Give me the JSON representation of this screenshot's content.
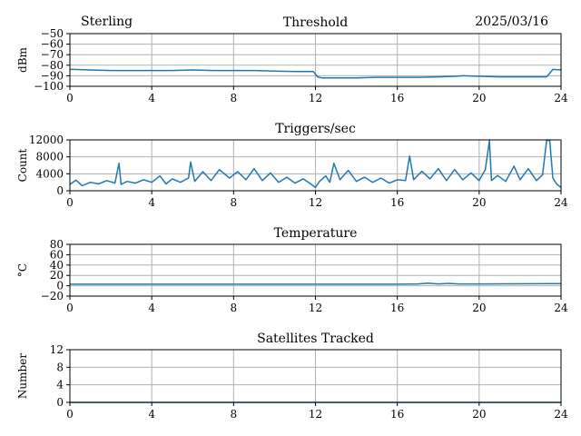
{
  "header": {
    "station": "Sterling",
    "date": "2025/03/16"
  },
  "colors": {
    "series": "#1f77b4",
    "grid": "#b0b0b0"
  },
  "chart_data": [
    {
      "type": "line",
      "title": "Threshold",
      "ylabel": "dBm",
      "xlim": [
        0,
        24
      ],
      "ylim": [
        -100,
        -50
      ],
      "grid": true,
      "x_ticks": [
        "0",
        "4",
        "8",
        "12",
        "16",
        "20",
        "24"
      ],
      "y_ticks": [
        "−50",
        "−60",
        "−70",
        "−80",
        "−90",
        "−100"
      ],
      "series": [
        {
          "x": [
            0,
            0.2,
            1,
            2,
            3,
            4,
            5,
            6,
            7,
            8,
            9,
            10,
            11,
            11.9,
            12.1,
            12.3,
            13,
            14,
            15,
            16,
            17,
            18,
            18.8,
            19.2,
            20,
            21,
            22,
            23,
            23.3,
            23.6,
            24
          ],
          "y": [
            -84,
            -84,
            -84.5,
            -85,
            -85,
            -85,
            -85,
            -84.5,
            -85,
            -85,
            -85,
            -85.5,
            -86,
            -86,
            -91,
            -92,
            -92,
            -92,
            -91.5,
            -91.5,
            -91.5,
            -91,
            -90.5,
            -90,
            -90.5,
            -91,
            -91,
            -91,
            -91,
            -84,
            -84.5
          ]
        }
      ]
    },
    {
      "type": "line",
      "title": "Triggers/sec",
      "ylabel": "Count",
      "xlim": [
        0,
        24
      ],
      "ylim": [
        0,
        12000
      ],
      "grid": true,
      "x_ticks": [
        "0",
        "4",
        "8",
        "12",
        "16",
        "20",
        "24"
      ],
      "y_ticks": [
        "0",
        "4000",
        "8000",
        "12000"
      ],
      "series": [
        {
          "x": [
            0,
            0.3,
            0.6,
            1,
            1.4,
            1.8,
            2.2,
            2.4,
            2.5,
            2.8,
            3.2,
            3.6,
            4,
            4.4,
            4.7,
            5,
            5.4,
            5.8,
            5.9,
            6.1,
            6.5,
            6.9,
            7.3,
            7.8,
            8.2,
            8.6,
            9,
            9.4,
            9.8,
            10.2,
            10.6,
            11,
            11.4,
            11.8,
            12,
            12.2,
            12.5,
            12.7,
            12.9,
            13.2,
            13.6,
            14,
            14.4,
            14.8,
            15.2,
            15.6,
            16,
            16.4,
            16.6,
            16.8,
            17.2,
            17.6,
            18,
            18.4,
            18.8,
            19.2,
            19.6,
            20,
            20.3,
            20.5,
            20.6,
            20.9,
            21.3,
            21.7,
            22,
            22.4,
            22.8,
            23.1,
            23.3,
            23.45,
            23.6,
            23.8,
            24
          ],
          "y": [
            1500,
            2500,
            1200,
            2000,
            1600,
            2400,
            1800,
            6500,
            1500,
            2200,
            1800,
            2600,
            2000,
            3500,
            1600,
            2800,
            2000,
            3000,
            6800,
            2200,
            4500,
            2400,
            5000,
            3000,
            4500,
            2600,
            5200,
            2400,
            4200,
            2000,
            3200,
            1800,
            2800,
            1500,
            800,
            2200,
            3500,
            2000,
            6500,
            2600,
            4800,
            2200,
            3200,
            2000,
            3000,
            1800,
            2600,
            2400,
            8200,
            2600,
            4600,
            2800,
            5200,
            2400,
            5000,
            2600,
            4200,
            2400,
            5000,
            11800,
            2400,
            3600,
            2200,
            5800,
            2600,
            5200,
            2400,
            3800,
            12000,
            11800,
            3000,
            1500,
            800
          ]
        }
      ]
    },
    {
      "type": "line",
      "title": "Temperature",
      "ylabel": "°C",
      "xlim": [
        0,
        24
      ],
      "ylim": [
        -20,
        80
      ],
      "grid": true,
      "x_ticks": [
        "0",
        "4",
        "8",
        "12",
        "16",
        "20",
        "24"
      ],
      "y_ticks": [
        "−20",
        "0",
        "20",
        "40",
        "60",
        "80"
      ],
      "series": [
        {
          "x": [
            0,
            4,
            8,
            12,
            16,
            17,
            17.5,
            18,
            18.5,
            19,
            20,
            24
          ],
          "y": [
            3,
            3,
            3,
            3,
            3,
            3.5,
            5,
            3.5,
            4.5,
            3.5,
            3.5,
            4
          ]
        }
      ]
    },
    {
      "type": "line",
      "title": "Satellites Tracked",
      "ylabel": "Number",
      "xlim": [
        0,
        24
      ],
      "ylim": [
        0,
        12
      ],
      "grid": true,
      "x_ticks": [
        "0",
        "4",
        "8",
        "12",
        "16",
        "20",
        "24"
      ],
      "y_ticks": [
        "0",
        "4",
        "8",
        "12"
      ],
      "series": [
        {
          "x": [
            0,
            24
          ],
          "y": [
            0,
            0
          ]
        }
      ]
    }
  ]
}
